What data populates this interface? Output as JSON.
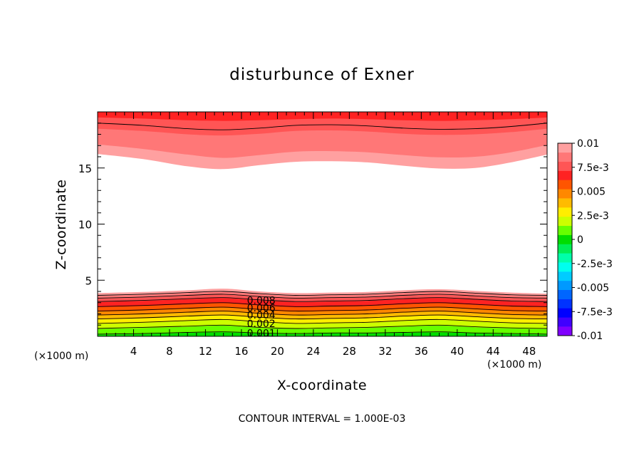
{
  "chart_data": {
    "type": "heatmap",
    "title": "disturbunce of Exner",
    "xlabel": "X-coordinate",
    "ylabel": "Z-coordinate",
    "x_unit": "(×1000 m)",
    "xlim": [
      0,
      50
    ],
    "ylim": [
      0,
      20
    ],
    "x_ticks": [
      4,
      8,
      12,
      16,
      20,
      24,
      28,
      32,
      36,
      40,
      44,
      48
    ],
    "y_ticks": [
      5,
      10,
      15
    ],
    "grid": false,
    "legend": "right colorbar",
    "colorbar": {
      "labels": [
        "0.01",
        "7.5e-3",
        "0.005",
        "2.5e-3",
        "0",
        "-2.5e-3",
        "-0.005",
        "-7.5e-3",
        "-0.01"
      ],
      "levels": [
        -0.01,
        -0.009,
        -0.008,
        -0.007,
        -0.006,
        -0.005,
        -0.004,
        -0.003,
        -0.002,
        -0.001,
        0,
        0.001,
        0.002,
        0.003,
        0.004,
        0.005,
        0.006,
        0.007,
        0.008,
        0.009,
        0.01
      ],
      "colors": [
        "#8000ff",
        "#4000ff",
        "#0000ff",
        "#0033ff",
        "#0066ff",
        "#0099ff",
        "#00ccff",
        "#00ffee",
        "#00ffaa",
        "#00ee55",
        "#00dd00",
        "#66ff00",
        "#ccff00",
        "#ffee00",
        "#ffbb00",
        "#ff8800",
        "#ff5500",
        "#ff2222",
        "#ff5555",
        "#ff7777",
        "#ffa0a0"
      ]
    },
    "contour_labels": [
      "0.008",
      "0.006",
      "0.004",
      "0.002",
      "0.001"
    ],
    "contour_interval_text": "CONTOUR INTERVAL = 1.000E-03",
    "bands": {
      "x": [
        0,
        5,
        10,
        14,
        18,
        22,
        26,
        30,
        34,
        38,
        42,
        46,
        50
      ],
      "bottom": [
        {
          "color": "#00dd00",
          "z": [
            0.15,
            0.2,
            0.3,
            0.35,
            0.25,
            0.2,
            0.25,
            0.25,
            0.3,
            0.35,
            0.25,
            0.2,
            0.15
          ]
        },
        {
          "color": "#66ff00",
          "z": [
            0.65,
            0.75,
            0.85,
            0.95,
            0.75,
            0.65,
            0.7,
            0.75,
            0.85,
            0.95,
            0.8,
            0.7,
            0.65
          ]
        },
        {
          "color": "#ccff00",
          "z": [
            1.1,
            1.2,
            1.35,
            1.45,
            1.25,
            1.1,
            1.15,
            1.2,
            1.35,
            1.45,
            1.3,
            1.15,
            1.1
          ]
        },
        {
          "color": "#ffee00",
          "z": [
            1.5,
            1.6,
            1.75,
            1.85,
            1.65,
            1.5,
            1.55,
            1.6,
            1.75,
            1.85,
            1.7,
            1.55,
            1.5
          ]
        },
        {
          "color": "#ffbb00",
          "z": [
            1.85,
            1.95,
            2.1,
            2.2,
            2.0,
            1.85,
            1.9,
            1.95,
            2.1,
            2.2,
            2.05,
            1.9,
            1.85
          ]
        },
        {
          "color": "#ff8800",
          "z": [
            2.2,
            2.3,
            2.45,
            2.55,
            2.35,
            2.2,
            2.25,
            2.3,
            2.45,
            2.55,
            2.4,
            2.25,
            2.2
          ]
        },
        {
          "color": "#ff5500",
          "z": [
            2.6,
            2.7,
            2.85,
            2.95,
            2.75,
            2.6,
            2.65,
            2.7,
            2.85,
            2.95,
            2.8,
            2.65,
            2.6
          ]
        },
        {
          "color": "#ff2222",
          "z": [
            3.05,
            3.15,
            3.3,
            3.4,
            3.2,
            3.05,
            3.1,
            3.15,
            3.3,
            3.4,
            3.25,
            3.1,
            3.05
          ]
        },
        {
          "color": "#ff5555",
          "z": [
            3.35,
            3.45,
            3.6,
            3.7,
            3.5,
            3.35,
            3.4,
            3.45,
            3.6,
            3.7,
            3.55,
            3.4,
            3.35
          ]
        },
        {
          "color": "#ff7777",
          "z": [
            3.6,
            3.7,
            3.85,
            3.95,
            3.75,
            3.6,
            3.65,
            3.7,
            3.85,
            3.95,
            3.8,
            3.65,
            3.6
          ]
        },
        {
          "color": "#ffa0a0",
          "z": [
            3.85,
            3.95,
            4.1,
            4.25,
            4.0,
            3.85,
            3.9,
            3.95,
            4.1,
            4.2,
            4.05,
            3.9,
            3.8
          ]
        }
      ],
      "top": [
        {
          "color": "#ffa0a0",
          "z": [
            16.25,
            15.8,
            15.15,
            14.9,
            15.25,
            15.55,
            15.6,
            15.5,
            15.2,
            14.95,
            15.0,
            15.5,
            16.2
          ]
        },
        {
          "color": "#ff7777",
          "z": [
            17.1,
            16.7,
            16.2,
            15.9,
            16.15,
            16.45,
            16.5,
            16.4,
            16.15,
            15.95,
            16.0,
            16.4,
            17.05
          ]
        },
        {
          "color": "#ff5555",
          "z": [
            18.5,
            18.3,
            18.0,
            17.9,
            18.05,
            18.3,
            18.35,
            18.25,
            18.05,
            17.95,
            18.0,
            18.2,
            18.5
          ]
        },
        {
          "color": "#ff2222",
          "z": [
            19.5,
            19.4,
            19.25,
            19.2,
            19.25,
            19.35,
            19.4,
            19.35,
            19.25,
            19.2,
            19.25,
            19.35,
            19.5
          ]
        }
      ]
    }
  }
}
